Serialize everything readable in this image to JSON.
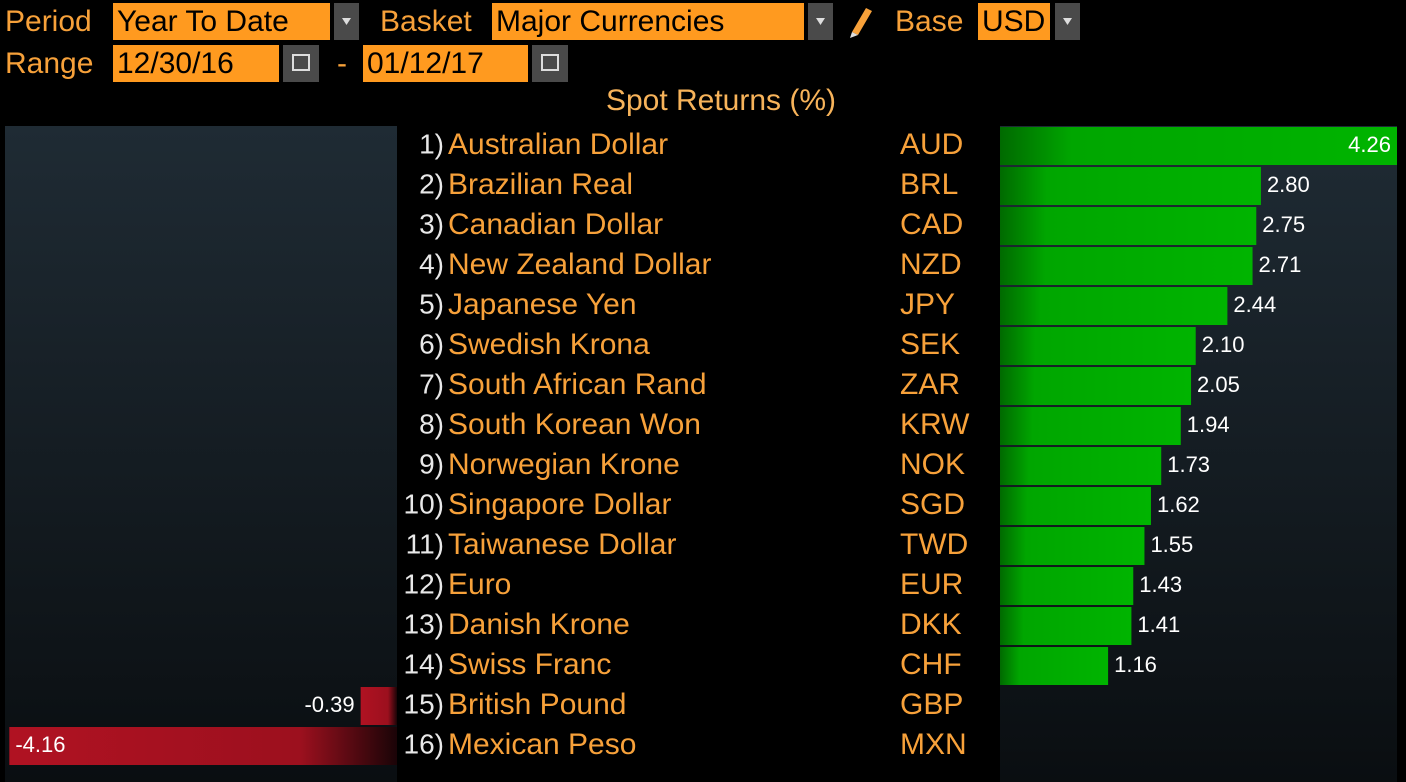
{
  "header": {
    "period_label": "Period",
    "period": "Year To Date",
    "basket_label": "Basket",
    "basket": "Major Currencies",
    "base_label": "Base",
    "base": "USD",
    "range_label": "Range",
    "range_start": "12/30/16",
    "range_separator": "-",
    "range_end": "01/12/17"
  },
  "title": "Spot Returns (%)",
  "rows": [
    {
      "rank": "1)",
      "name": "Australian Dollar",
      "code": "AUD",
      "value": 4.26,
      "value_label": "4.26"
    },
    {
      "rank": "2)",
      "name": "Brazilian Real",
      "code": "BRL",
      "value": 2.8,
      "value_label": "2.80"
    },
    {
      "rank": "3)",
      "name": "Canadian Dollar",
      "code": "CAD",
      "value": 2.75,
      "value_label": "2.75"
    },
    {
      "rank": "4)",
      "name": "New Zealand Dollar",
      "code": "NZD",
      "value": 2.71,
      "value_label": "2.71"
    },
    {
      "rank": "5)",
      "name": "Japanese Yen",
      "code": "JPY",
      "value": 2.44,
      "value_label": "2.44"
    },
    {
      "rank": "6)",
      "name": "Swedish Krona",
      "code": "SEK",
      "value": 2.1,
      "value_label": "2.10"
    },
    {
      "rank": "7)",
      "name": "South African Rand",
      "code": "ZAR",
      "value": 2.05,
      "value_label": "2.05"
    },
    {
      "rank": "8)",
      "name": "South Korean Won",
      "code": "KRW",
      "value": 1.94,
      "value_label": "1.94"
    },
    {
      "rank": "9)",
      "name": "Norwegian Krone",
      "code": "NOK",
      "value": 1.73,
      "value_label": "1.73"
    },
    {
      "rank": "10)",
      "name": "Singapore Dollar",
      "code": "SGD",
      "value": 1.62,
      "value_label": "1.62"
    },
    {
      "rank": "11)",
      "name": "Taiwanese Dollar",
      "code": "TWD",
      "value": 1.55,
      "value_label": "1.55"
    },
    {
      "rank": "12)",
      "name": "Euro",
      "code": "EUR",
      "value": 1.43,
      "value_label": "1.43"
    },
    {
      "rank": "13)",
      "name": "Danish Krone",
      "code": "DKK",
      "value": 1.41,
      "value_label": "1.41"
    },
    {
      "rank": "14)",
      "name": "Swiss Franc",
      "code": "CHF",
      "value": 1.16,
      "value_label": "1.16"
    },
    {
      "rank": "15)",
      "name": "British Pound",
      "code": "GBP",
      "value": -0.39,
      "value_label": "-0.39"
    },
    {
      "rank": "16)",
      "name": "Mexican Peso",
      "code": "MXN",
      "value": -4.16,
      "value_label": "-4.16"
    }
  ]
}
